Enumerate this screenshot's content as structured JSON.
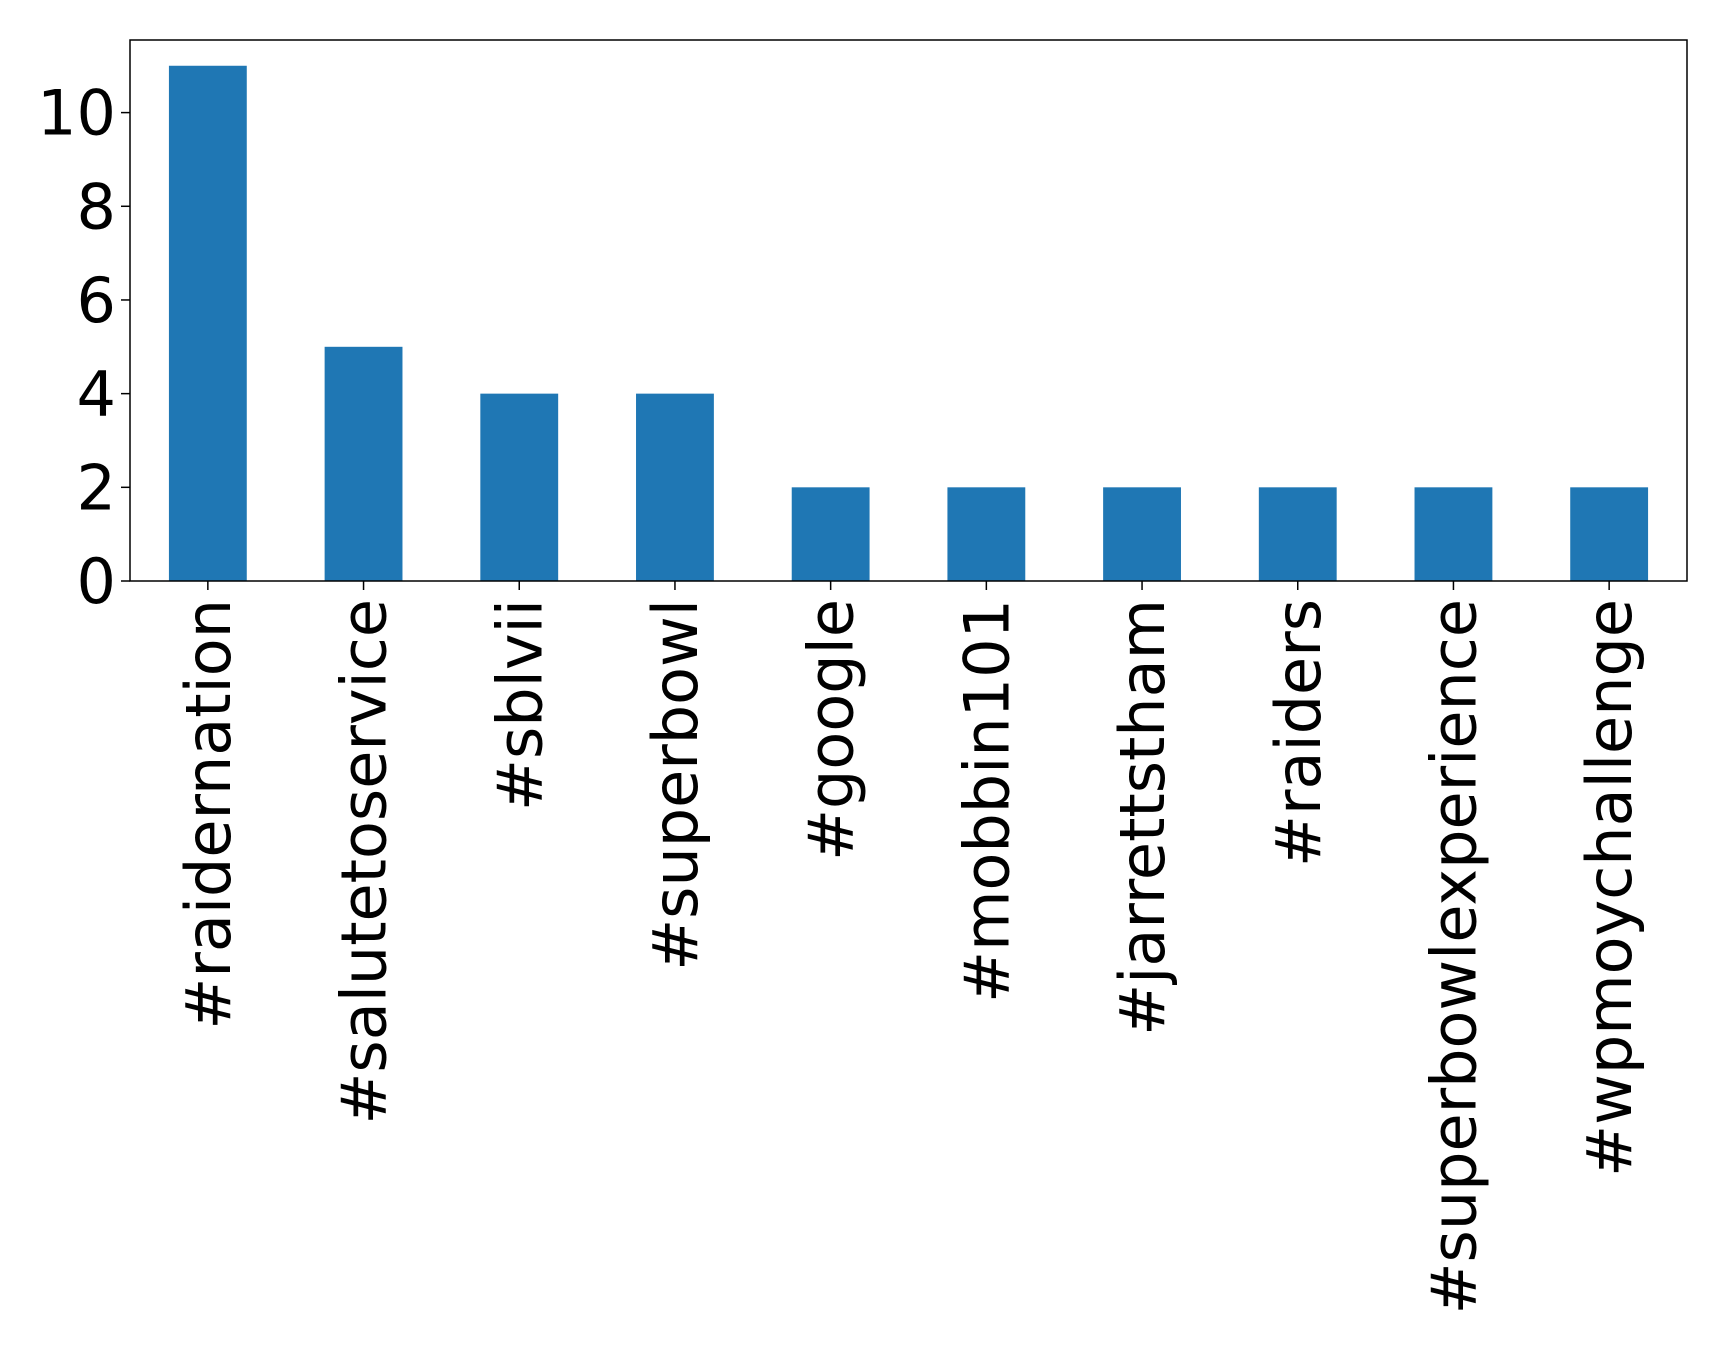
{
  "chart_data": {
    "type": "bar",
    "categories": [
      "#raidernation",
      "#salutetoservice",
      "#sblvii",
      "#superbowl",
      "#google",
      "#mobbin101",
      "#jarrettstham",
      "#raiders",
      "#superbowlexperience",
      "#wpmoychallenge"
    ],
    "values": [
      11,
      5,
      4,
      4,
      2,
      2,
      2,
      2,
      2,
      2
    ],
    "color": "#1f77b4",
    "ylim": [
      0,
      11.55
    ],
    "yticks": [
      0,
      2,
      4,
      6,
      8,
      10
    ],
    "grid": false
  }
}
